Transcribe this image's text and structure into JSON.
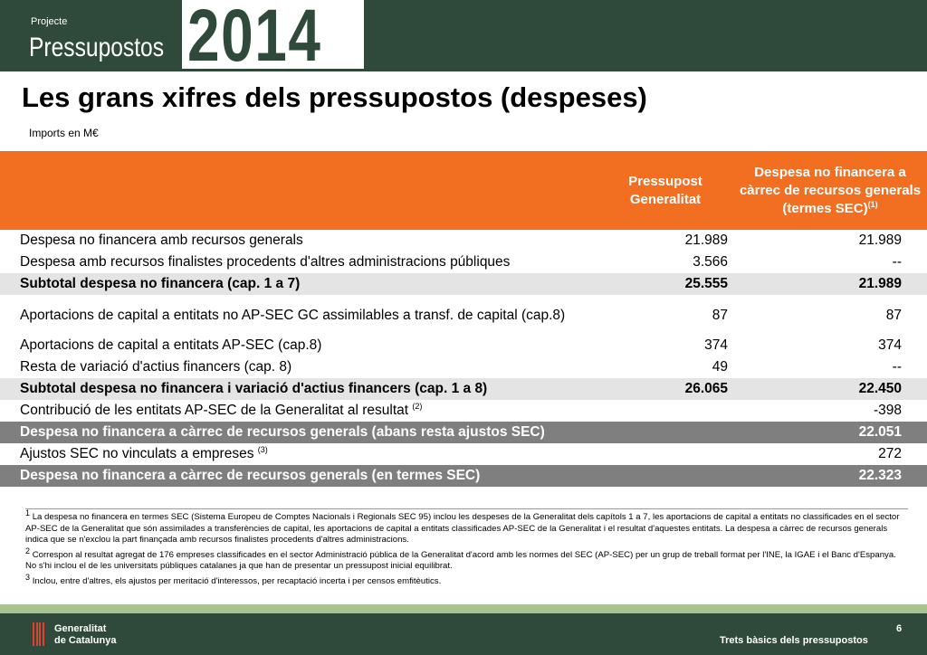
{
  "header": {
    "projecte": "Projecte",
    "pressupostos": "Pressupostos",
    "year": "2014"
  },
  "title": "Les grans xifres dels pressupostos (despeses)",
  "subtitle": "Imports en M€",
  "table": {
    "col2_header": "Pressupost Generalitat",
    "col3_header": "Despesa no financera a càrrec de recursos generals (termes SEC)",
    "col3_header_sup": "(1)",
    "rows": [
      {
        "label": "Despesa no financera amb recursos generals",
        "sup": "",
        "v1": "21.989",
        "v2": "21.989",
        "style": "row"
      },
      {
        "label": "Despesa amb recursos finalistes procedents d'altres administracions públiques",
        "sup": "",
        "v1": "3.566",
        "v2": "--",
        "style": "row"
      },
      {
        "label": "Subtotal despesa no financera (cap. 1 a 7)",
        "sup": "",
        "v1": "25.555",
        "v2": "21.989",
        "style": "grey"
      },
      {
        "label": "Aportacions de capital a entitats no AP-SEC GC assimilables a transf. de capital (cap.8)",
        "sup": "",
        "v1": "87",
        "v2": "87",
        "style": "tall"
      },
      {
        "label": "Aportacions de capital a entitats AP-SEC (cap.8)",
        "sup": "",
        "v1": "374",
        "v2": "374",
        "style": "row"
      },
      {
        "label": "Resta de variació d'actius financers (cap. 8)",
        "sup": "",
        "v1": "49",
        "v2": "--",
        "style": "row"
      },
      {
        "label": "Subtotal despesa no financera i variació d'actius financers (cap. 1 a 8)",
        "sup": "",
        "v1": "26.065",
        "v2": "22.450",
        "style": "grey"
      },
      {
        "label": "Contribució de les entitats AP-SEC de la Generalitat al resultat",
        "sup": "(2)",
        "v1": "",
        "v2": "-398",
        "style": "row"
      },
      {
        "label": "Despesa no financera a càrrec de recursos generals (abans resta ajustos SEC)",
        "sup": "",
        "v1": "",
        "v2": "22.051",
        "style": "dark"
      },
      {
        "label": "Ajustos SEC no vinculats a empreses",
        "sup": "(3)",
        "v1": "",
        "v2": "272",
        "style": "row"
      },
      {
        "label": "Despesa no financera a càrrec de recursos generals (en termes SEC)",
        "sup": "",
        "v1": "",
        "v2": "22.323",
        "style": "dark"
      }
    ]
  },
  "notes": [
    {
      "num": "1",
      "text": "La despesa no financera en termes SEC (Sistema Europeu de Comptes Nacionals i Regionals SEC 95) inclou les despeses de la Generalitat dels capítols 1 a 7, les aportacions de capital a entitats no classificades en el sector AP-SEC de la Generalitat que són assimilades a transferències de capital, les aportacions de capital a entitats classificades AP-SEC de la Generalitat i el resultat d'aquestes entitats. La despesa a càrrec de recursos generals indica que se n'exclou la part finançada amb recursos finalistes procedents d'altres administracions."
    },
    {
      "num": "2",
      "text": "Correspon al resultat agregat de 176 empreses classificades en el sector Administració pública de la Generalitat d'acord amb les normes del SEC (AP-SEC) per un grup de treball format per l'INE, la IGAE i el Banc d'Espanya. No s'hi inclou el de les universitats públiques catalanes ja que han de presentar un pressupost inicial equilibrat."
    },
    {
      "num": "3",
      "text": "Inclou, entre d'altres, els ajustos per meritació d'interessos, per recaptació incerta i per censos emfitèutics."
    }
  ],
  "footer": {
    "gen_line1": "Generalitat",
    "gen_line2": "de Catalunya",
    "trets": "Trets bàsics dels pressupostos",
    "page": "6"
  },
  "colors": {
    "header_green": "#2f4a3a",
    "orange": "#f26f21",
    "grey_row": "#e4e4e4",
    "dark_row": "#7f7f7f",
    "strip": "#a8c290"
  }
}
